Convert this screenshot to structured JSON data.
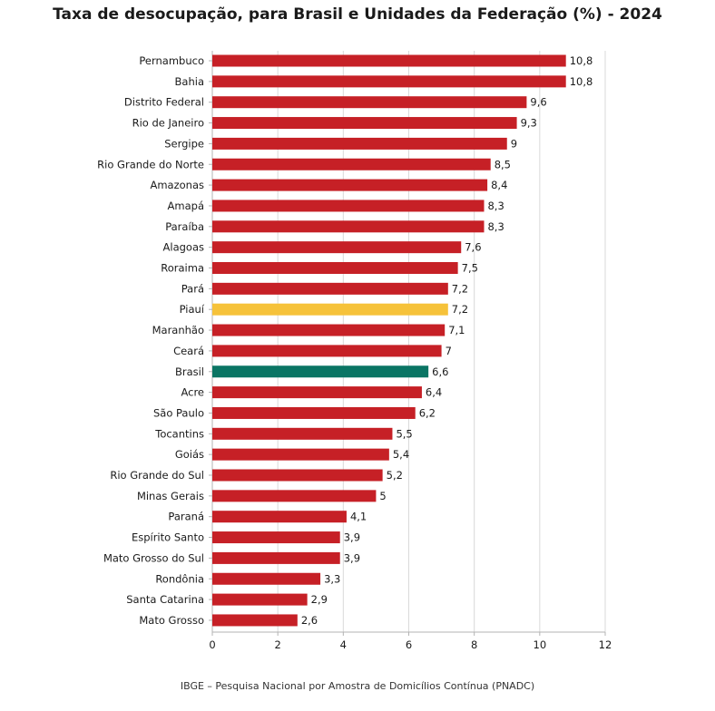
{
  "chart_data": {
    "type": "bar",
    "orientation": "horizontal",
    "title": "Taxa de desocupação, para Brasil e Unidades da Federação (%) - 2024",
    "source": "IBGE – Pesquisa Nacional por Amostra de Domicílios Contínua (PNADC)",
    "xlim": [
      0,
      12
    ],
    "xticks": [
      "0",
      "2",
      "4",
      "6",
      "8",
      "10",
      "12"
    ],
    "grid": "vertical",
    "categories": [
      "Pernambuco",
      "Bahia",
      "Distrito Federal",
      "Rio de Janeiro",
      "Sergipe",
      "Rio Grande do Norte",
      "Amazonas",
      "Amapá",
      "Paraíba",
      "Alagoas",
      "Roraima",
      "Pará",
      "Piauí",
      "Maranhão",
      "Ceará",
      "Brasil",
      "Acre",
      "São Paulo",
      "Tocantins",
      "Goiás",
      "Rio Grande do Sul",
      "Minas Gerais",
      "Paraná",
      "Espírito Santo",
      "Mato Grosso do Sul",
      "Rondônia",
      "Santa Catarina",
      "Mato Grosso"
    ],
    "values": [
      10.8,
      10.8,
      9.6,
      9.3,
      9,
      8.5,
      8.4,
      8.3,
      8.3,
      7.6,
      7.5,
      7.2,
      7.2,
      7.1,
      7,
      6.6,
      6.4,
      6.2,
      5.5,
      5.4,
      5.2,
      5,
      4.1,
      3.9,
      3.9,
      3.3,
      2.9,
      2.6
    ],
    "value_labels": [
      "10,8",
      "10,8",
      "9,6",
      "9,3",
      "9",
      "8,5",
      "8,4",
      "8,3",
      "8,3",
      "7,6",
      "7,5",
      "7,2",
      "7,2",
      "7,1",
      "7",
      "6,6",
      "6,4",
      "6,2",
      "5,5",
      "5,4",
      "5,2",
      "5",
      "4,1",
      "3,9",
      "3,9",
      "3,3",
      "2,9",
      "2,6"
    ],
    "colors": {
      "default": "#c62026",
      "Piauí": "#f6c23a",
      "Brasil": "#0a7564",
      "grid": "#d9d9d9",
      "axis": "#b3b3b3"
    }
  }
}
